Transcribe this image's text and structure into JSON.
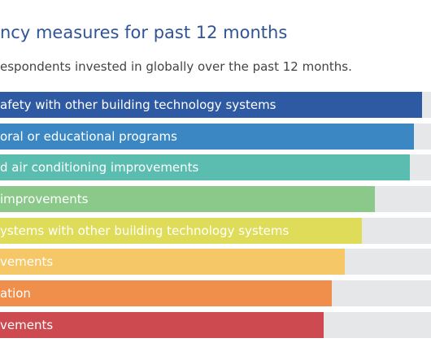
{
  "chart_data": {
    "type": "bar",
    "orientation": "horizontal",
    "title": "ncy measures for past 12 months",
    "subtitle": "espondents invested in globally over the past 12 months.",
    "categories": [
      "afety with other building technology systems",
      "oral or educational programs",
      "d air conditioning improvements",
      "improvements",
      "ystems with other building technology systems",
      "vements",
      "ation",
      "vements"
    ],
    "values": [
      98,
      96,
      95,
      87,
      84,
      80,
      77,
      75
    ],
    "xlim": [
      0,
      100
    ],
    "colors": [
      "#2e5aa3",
      "#3a87c3",
      "#5bbdb0",
      "#8bc98b",
      "#dfdc5a",
      "#f6c767",
      "#ef8f4b",
      "#cd4a50"
    ],
    "track_color": "#e6e7e9",
    "grid": false,
    "legend": "none"
  }
}
